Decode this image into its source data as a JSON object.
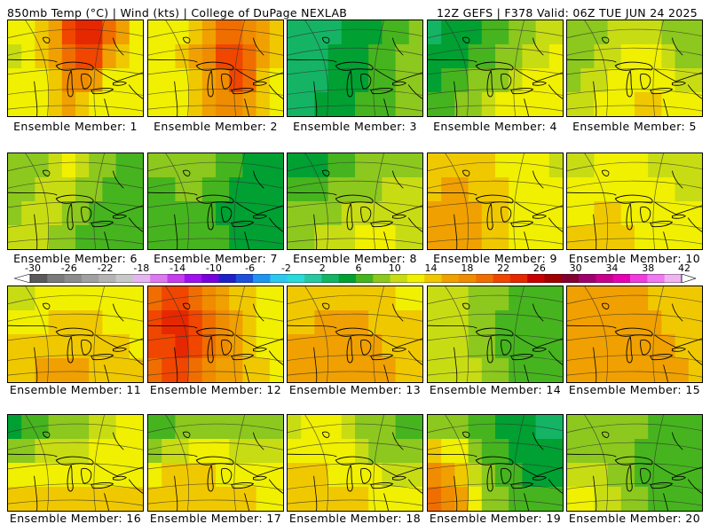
{
  "header": {
    "left": "850mb Temp (°C) | Wind (kts) | College of DuPage NEXLAB",
    "right": "12Z GEFS | F378 Valid: 06Z TUE JUN 24 2025"
  },
  "label_prefix": "Ensemble Member: ",
  "panels": [
    {
      "member": "1",
      "label": "Ensemble Member: 1",
      "field": [
        14,
        15,
        16,
        19,
        24,
        26,
        27,
        22,
        19,
        15,
        13,
        15,
        16,
        19,
        23,
        25,
        24,
        18,
        17,
        15,
        15,
        15,
        14,
        16,
        20,
        21,
        18,
        15,
        14,
        14,
        14,
        14,
        15,
        16,
        18,
        17,
        15,
        14,
        14,
        14
      ]
    },
    {
      "member": "2",
      "label": "Ensemble Member: 2",
      "field": [
        14,
        14,
        15,
        16,
        19,
        22,
        22,
        21,
        19,
        17,
        15,
        15,
        16,
        18,
        20,
        24,
        25,
        22,
        18,
        16,
        15,
        15,
        15,
        17,
        18,
        21,
        24,
        22,
        17,
        15,
        15,
        14,
        15,
        16,
        18,
        20,
        21,
        18,
        16,
        15
      ]
    },
    {
      "member": "3",
      "label": "Ensemble Member: 3",
      "field": [
        3,
        3,
        4,
        5,
        6,
        7,
        8,
        9,
        10,
        11,
        2,
        3,
        4,
        6,
        7,
        8,
        9,
        10,
        11,
        12,
        4,
        4,
        5,
        7,
        8,
        8,
        9,
        10,
        11,
        12,
        5,
        5,
        6,
        7,
        8,
        9,
        9,
        10,
        11,
        12
      ]
    },
    {
      "member": "4",
      "label": "Ensemble Member: 4",
      "field": [
        5,
        6,
        7,
        8,
        9,
        10,
        11,
        12,
        13,
        13,
        6,
        7,
        8,
        9,
        10,
        11,
        12,
        13,
        13,
        14,
        8,
        9,
        10,
        11,
        12,
        12,
        13,
        14,
        14,
        15,
        9,
        10,
        11,
        12,
        13,
        14,
        14,
        15,
        15,
        15
      ]
    },
    {
      "member": "5",
      "label": "Ensemble Member: 5",
      "field": [
        11,
        12,
        12,
        13,
        13,
        13,
        13,
        12,
        12,
        12,
        12,
        12,
        13,
        13,
        14,
        14,
        14,
        13,
        12,
        12,
        12,
        13,
        13,
        14,
        14,
        15,
        15,
        14,
        13,
        13,
        13,
        13,
        14,
        14,
        15,
        16,
        16,
        15,
        14,
        14
      ]
    },
    {
      "member": "6",
      "label": "Ensemble Member: 6",
      "field": [
        11,
        12,
        12,
        13,
        14,
        13,
        12,
        11,
        10,
        10,
        12,
        12,
        13,
        13,
        13,
        12,
        11,
        10,
        9,
        9,
        12,
        13,
        13,
        13,
        12,
        11,
        10,
        9,
        9,
        9,
        13,
        13,
        13,
        12,
        11,
        10,
        10,
        9,
        9,
        9
      ]
    },
    {
      "member": "7",
      "label": "Ensemble Member: 7",
      "field": [
        11,
        11,
        12,
        12,
        11,
        10,
        9,
        8,
        8,
        8,
        10,
        10,
        11,
        11,
        10,
        9,
        8,
        7,
        7,
        7,
        9,
        9,
        10,
        10,
        9,
        8,
        8,
        7,
        7,
        7,
        10,
        10,
        10,
        10,
        9,
        9,
        8,
        8,
        8,
        8
      ]
    },
    {
      "member": "8",
      "label": "Ensemble Member: 8",
      "field": [
        7,
        7,
        8,
        9,
        10,
        11,
        11,
        12,
        12,
        12,
        9,
        9,
        10,
        11,
        11,
        12,
        12,
        13,
        13,
        13,
        11,
        11,
        12,
        12,
        13,
        13,
        13,
        13,
        13,
        13,
        12,
        12,
        13,
        13,
        13,
        14,
        14,
        14,
        13,
        13
      ]
    },
    {
      "member": "9",
      "label": "Ensemble Member: 9",
      "field": [
        16,
        17,
        17,
        16,
        16,
        15,
        14,
        14,
        14,
        13,
        17,
        18,
        18,
        17,
        16,
        16,
        15,
        14,
        14,
        14,
        18,
        18,
        19,
        18,
        17,
        16,
        15,
        15,
        14,
        14,
        18,
        18,
        18,
        18,
        17,
        16,
        15,
        15,
        15,
        14
      ]
    },
    {
      "member": "10",
      "label": "Ensemble Member: 10",
      "field": [
        13,
        13,
        14,
        14,
        14,
        14,
        13,
        13,
        13,
        13,
        14,
        14,
        15,
        15,
        15,
        14,
        14,
        14,
        13,
        13,
        15,
        15,
        16,
        16,
        15,
        15,
        14,
        14,
        14,
        14,
        16,
        16,
        16,
        16,
        16,
        15,
        15,
        14,
        14,
        14
      ]
    },
    {
      "member": "11",
      "label": "Ensemble Member: 11",
      "field": [
        13,
        13,
        14,
        14,
        15,
        15,
        15,
        14,
        14,
        14,
        14,
        15,
        15,
        16,
        16,
        16,
        16,
        15,
        15,
        14,
        16,
        16,
        17,
        17,
        17,
        17,
        17,
        16,
        16,
        15,
        17,
        17,
        18,
        18,
        18,
        18,
        17,
        17,
        16,
        16
      ]
    },
    {
      "member": "12",
      "label": "Ensemble Member: 12",
      "field": [
        22,
        24,
        25,
        23,
        21,
        19,
        17,
        16,
        15,
        14,
        24,
        26,
        27,
        25,
        22,
        20,
        18,
        16,
        15,
        14,
        24,
        25,
        26,
        25,
        23,
        20,
        18,
        16,
        15,
        15,
        23,
        24,
        24,
        23,
        21,
        19,
        18,
        17,
        16,
        15
      ]
    },
    {
      "member": "13",
      "label": "Ensemble Member: 13",
      "field": [
        16,
        16,
        17,
        17,
        17,
        17,
        16,
        16,
        15,
        15,
        17,
        17,
        18,
        18,
        18,
        18,
        17,
        17,
        16,
        16,
        18,
        18,
        18,
        18,
        18,
        18,
        18,
        17,
        17,
        16,
        18,
        18,
        18,
        18,
        18,
        18,
        18,
        18,
        17,
        17
      ]
    },
    {
      "member": "14",
      "label": "Ensemble Member: 14",
      "field": [
        13,
        13,
        13,
        12,
        12,
        11,
        10,
        9,
        9,
        9,
        13,
        13,
        13,
        12,
        11,
        10,
        9,
        9,
        9,
        9,
        13,
        13,
        13,
        12,
        11,
        10,
        9,
        9,
        9,
        9,
        13,
        13,
        13,
        13,
        12,
        11,
        10,
        10,
        10,
        10
      ]
    },
    {
      "member": "15",
      "label": "Ensemble Member: 15",
      "field": [
        18,
        18,
        18,
        18,
        18,
        18,
        17,
        17,
        17,
        16,
        18,
        18,
        19,
        19,
        18,
        18,
        18,
        17,
        17,
        17,
        18,
        19,
        19,
        19,
        19,
        18,
        18,
        18,
        17,
        17,
        18,
        18,
        19,
        19,
        19,
        19,
        18,
        18,
        18,
        17
      ]
    },
    {
      "member": "16",
      "label": "Ensemble Member: 16",
      "field": [
        8,
        9,
        10,
        11,
        12,
        12,
        13,
        13,
        14,
        14,
        12,
        12,
        13,
        13,
        13,
        13,
        14,
        14,
        14,
        14,
        15,
        15,
        15,
        15,
        14,
        14,
        15,
        15,
        15,
        15,
        17,
        17,
        17,
        16,
        16,
        16,
        16,
        16,
        16,
        16
      ]
    },
    {
      "member": "17",
      "label": "Ensemble Member: 17",
      "field": [
        9,
        10,
        11,
        11,
        12,
        12,
        12,
        12,
        11,
        11,
        12,
        13,
        13,
        14,
        14,
        14,
        13,
        13,
        13,
        13,
        15,
        16,
        16,
        16,
        16,
        15,
        15,
        14,
        14,
        14,
        17,
        17,
        17,
        17,
        16,
        16,
        16,
        16,
        15,
        15
      ]
    },
    {
      "member": "18",
      "label": "Ensemble Member: 18",
      "field": [
        13,
        14,
        14,
        14,
        13,
        12,
        11,
        11,
        10,
        10,
        15,
        15,
        15,
        14,
        14,
        13,
        12,
        12,
        11,
        11,
        16,
        16,
        16,
        15,
        15,
        14,
        14,
        13,
        13,
        13,
        17,
        17,
        17,
        17,
        16,
        16,
        15,
        15,
        15,
        14
      ]
    },
    {
      "member": "19",
      "label": "Ensemble Member: 19",
      "field": [
        12,
        12,
        11,
        10,
        9,
        8,
        7,
        6,
        5,
        4,
        16,
        15,
        14,
        12,
        10,
        9,
        8,
        7,
        6,
        6,
        20,
        18,
        16,
        13,
        11,
        10,
        9,
        8,
        8,
        8,
        23,
        21,
        18,
        15,
        12,
        11,
        10,
        10,
        10,
        10
      ]
    },
    {
      "member": "20",
      "label": "Ensemble Member: 20",
      "field": [
        12,
        12,
        12,
        12,
        12,
        11,
        10,
        10,
        9,
        9,
        12,
        12,
        12,
        12,
        11,
        10,
        9,
        9,
        9,
        9,
        13,
        13,
        13,
        12,
        11,
        10,
        10,
        9,
        9,
        9,
        14,
        14,
        13,
        13,
        12,
        11,
        10,
        10,
        10,
        10
      ]
    }
  ],
  "colorbar": {
    "ticks": [
      "-30",
      "-26",
      "-22",
      "-18",
      "-14",
      "-10",
      "-6",
      "-2",
      "2",
      "6",
      "10",
      "14",
      "18",
      "22",
      "26",
      "30",
      "34",
      "38",
      "42"
    ],
    "colors": [
      "#5a5a5a",
      "#7a7a7a",
      "#8c8c8c",
      "#a0a0a0",
      "#b4b4b4",
      "#c8c8c8",
      "#e6b4f0",
      "#dc78f0",
      "#c83cf0",
      "#a00ff0",
      "#7800dc",
      "#2020c8",
      "#1e50dc",
      "#1e96f0",
      "#2cc8f0",
      "#28dcdc",
      "#28c8a0",
      "#14b464",
      "#00a032",
      "#46b41e",
      "#8cc81e",
      "#c8dc14",
      "#f0f000",
      "#f0c800",
      "#f0a000",
      "#f08c00",
      "#f06e00",
      "#f04600",
      "#e62800",
      "#c80000",
      "#a00000",
      "#820032",
      "#a0006e",
      "#c8008c",
      "#e600b4",
      "#f03cdc",
      "#f078f0",
      "#f0b4f0"
    ]
  }
}
